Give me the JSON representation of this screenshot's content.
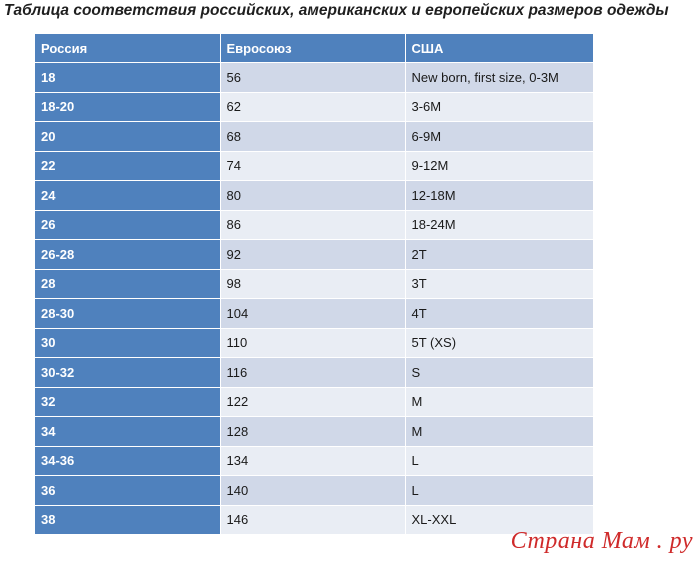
{
  "title": "Таблица соответствия российских, американских и европейских размеров одежды",
  "table": {
    "headers": [
      "Россия",
      "Евросоюз",
      "США"
    ],
    "rows": [
      [
        "18",
        "56",
        "New born, first size, 0-3M"
      ],
      [
        "18-20",
        "62",
        "3-6M"
      ],
      [
        "20",
        "68",
        "6-9M"
      ],
      [
        "22",
        "74",
        "9-12M"
      ],
      [
        "24",
        "80",
        "12-18M"
      ],
      [
        "26",
        "86",
        "18-24M"
      ],
      [
        "26-28",
        "92",
        "2T"
      ],
      [
        "28",
        "98",
        "3T"
      ],
      [
        "28-30",
        "104",
        "4T"
      ],
      [
        "30",
        "110",
        "5T (XS)"
      ],
      [
        "30-32",
        "116",
        "S"
      ],
      [
        "32",
        "122",
        "M"
      ],
      [
        "34",
        "128",
        "M"
      ],
      [
        "34-36",
        "134",
        "L"
      ],
      [
        "36",
        "140",
        "L"
      ],
      [
        "38",
        "146",
        "XL-XXL"
      ]
    ]
  },
  "watermark": "Страна Мам . ру",
  "colors": {
    "header_bg": "#4f81bd",
    "row_odd": "#d0d8e8",
    "row_even": "#e9edf4",
    "watermark": "#cf2a2a"
  }
}
